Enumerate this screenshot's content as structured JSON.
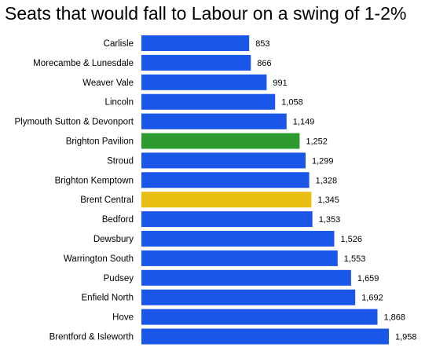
{
  "chart_data": {
    "type": "bar",
    "orientation": "horizontal",
    "title": "Seats that would fall to Labour on a swing of 1-2%",
    "xlabel": "",
    "ylabel": "",
    "categories": [
      "Carlisle",
      "Morecambe & Lunesdale",
      "Weaver Vale",
      "Lincoln",
      "Plymouth Sutton & Devonport",
      "Brighton Pavilion",
      "Stroud",
      "Brighton Kemptown",
      "Brent Central",
      "Bedford",
      "Dewsbury",
      "Warrington South",
      "Pudsey",
      "Enfield North",
      "Hove",
      "Brentford & Isleworth"
    ],
    "values": [
      853,
      866,
      991,
      1058,
      1149,
      1252,
      1299,
      1328,
      1345,
      1353,
      1526,
      1553,
      1659,
      1692,
      1868,
      1958
    ],
    "value_labels": [
      "853",
      "866",
      "991",
      "1,058",
      "1,149",
      "1,252",
      "1,299",
      "1,328",
      "1,345",
      "1,353",
      "1,526",
      "1,553",
      "1,659",
      "1,692",
      "1,868",
      "1,958"
    ],
    "bar_colors": [
      "#1a56e8",
      "#1a56e8",
      "#1a56e8",
      "#1a56e8",
      "#1a56e8",
      "#2c9a2e",
      "#1a56e8",
      "#1a56e8",
      "#e8be10",
      "#1a56e8",
      "#1a56e8",
      "#1a56e8",
      "#1a56e8",
      "#1a56e8",
      "#1a56e8",
      "#1a56e8"
    ],
    "xlim": [
      0,
      1958
    ],
    "grid": false,
    "legend": "none"
  }
}
